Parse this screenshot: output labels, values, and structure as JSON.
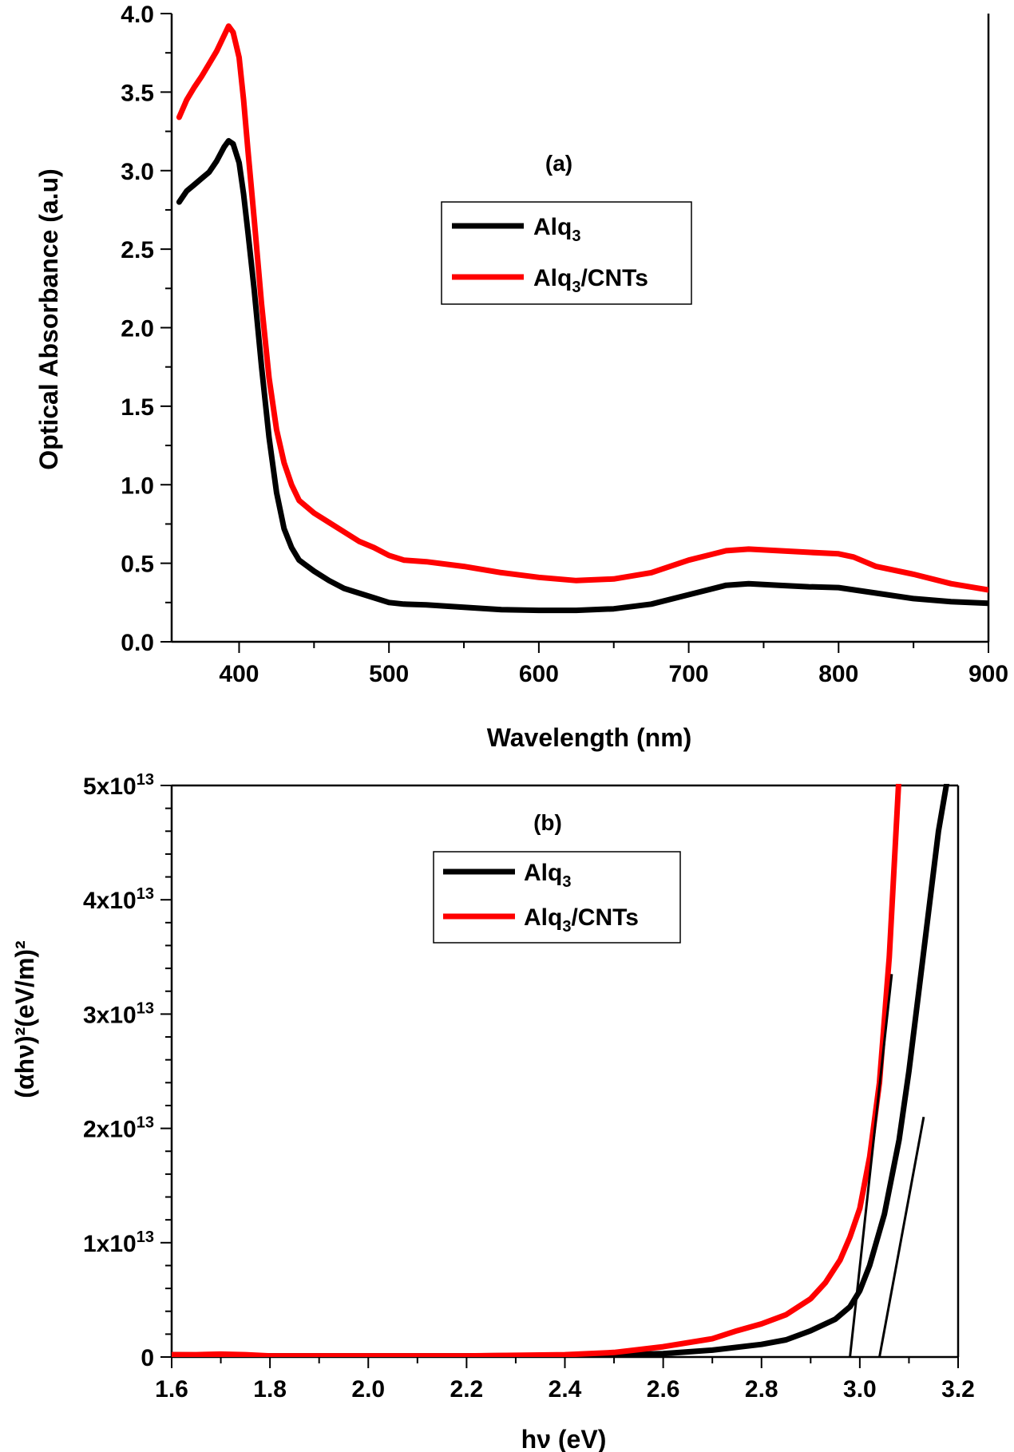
{
  "chart_data": [
    {
      "type": "line",
      "panel_label": "(a)",
      "xlabel": "Wavelength (nm)",
      "ylabel": "Optical Absorbance (a.u)",
      "xlim": [
        355,
        900
      ],
      "ylim": [
        0,
        4.0
      ],
      "xticks": [
        400,
        500,
        600,
        700,
        800,
        900
      ],
      "xtick_labels": [
        "400",
        "500",
        "600",
        "700",
        "800",
        "900"
      ],
      "yticks": [
        0,
        0.5,
        1.0,
        1.5,
        2.0,
        2.5,
        3.0,
        3.5,
        4.0
      ],
      "ytick_labels": [
        "0.0",
        "0.5",
        "1.0",
        "1.5",
        "2.0",
        "2.5",
        "3.0",
        "3.5",
        "4.0"
      ],
      "legend": {
        "position": "center",
        "entries": [
          {
            "base": "Alq",
            "sub": "3",
            "rest": ""
          },
          {
            "base": "Alq",
            "sub": "3",
            "rest": "/CNTs"
          }
        ]
      },
      "series": [
        {
          "name": "Alq3",
          "color": "#000000",
          "x": [
            360,
            365,
            370,
            375,
            380,
            385,
            390,
            393,
            396,
            400,
            403,
            406,
            410,
            415,
            420,
            425,
            430,
            435,
            440,
            450,
            460,
            470,
            480,
            490,
            500,
            510,
            525,
            550,
            575,
            600,
            625,
            650,
            675,
            700,
            725,
            740,
            760,
            780,
            800,
            825,
            850,
            875,
            900
          ],
          "y": [
            2.8,
            2.87,
            2.91,
            2.95,
            2.99,
            3.06,
            3.15,
            3.19,
            3.17,
            3.05,
            2.85,
            2.6,
            2.25,
            1.75,
            1.3,
            0.95,
            0.72,
            0.6,
            0.52,
            0.45,
            0.39,
            0.34,
            0.31,
            0.28,
            0.25,
            0.24,
            0.235,
            0.22,
            0.205,
            0.2,
            0.2,
            0.21,
            0.24,
            0.3,
            0.36,
            0.37,
            0.36,
            0.35,
            0.345,
            0.31,
            0.275,
            0.255,
            0.245
          ]
        },
        {
          "name": "Alq3/CNTs",
          "color": "#ff0000",
          "x": [
            360,
            365,
            370,
            375,
            380,
            385,
            390,
            393,
            396,
            400,
            403,
            406,
            410,
            415,
            420,
            425,
            430,
            435,
            440,
            450,
            460,
            470,
            480,
            490,
            500,
            510,
            525,
            550,
            575,
            600,
            625,
            650,
            675,
            700,
            725,
            740,
            760,
            780,
            800,
            810,
            825,
            850,
            875,
            900
          ],
          "y": [
            3.34,
            3.45,
            3.53,
            3.6,
            3.68,
            3.76,
            3.86,
            3.92,
            3.88,
            3.72,
            3.45,
            3.12,
            2.7,
            2.15,
            1.68,
            1.35,
            1.14,
            1.0,
            0.9,
            0.82,
            0.76,
            0.7,
            0.64,
            0.6,
            0.55,
            0.52,
            0.51,
            0.48,
            0.44,
            0.41,
            0.39,
            0.4,
            0.44,
            0.52,
            0.58,
            0.59,
            0.58,
            0.57,
            0.56,
            0.54,
            0.48,
            0.43,
            0.37,
            0.33
          ]
        }
      ]
    },
    {
      "type": "line",
      "panel_label": "(b)",
      "xlabel": "hν (eV)",
      "ylabel": "(αhν)²(eV/m)²",
      "xlim": [
        1.6,
        3.2
      ],
      "ylim": [
        0,
        50000000000000.0
      ],
      "xticks": [
        1.6,
        1.8,
        2.0,
        2.2,
        2.4,
        2.6,
        2.8,
        3.0,
        3.2
      ],
      "xtick_labels": [
        "1.6",
        "1.8",
        "2.0",
        "2.2",
        "2.4",
        "2.6",
        "2.8",
        "3.0",
        "3.2"
      ],
      "yticks": [
        0,
        10000000000000.0,
        20000000000000.0,
        30000000000000.0,
        40000000000000.0,
        50000000000000.0
      ],
      "ytick_labels": [
        "0",
        "1x10",
        "2x10",
        "3x10",
        "4x10",
        "5x10"
      ],
      "ytick_exponent": "13",
      "legend": {
        "position": "top-right",
        "entries": [
          {
            "base": "Alq",
            "sub": "3",
            "rest": ""
          },
          {
            "base": "Alq",
            "sub": "3",
            "rest": "/CNTs"
          }
        ]
      },
      "series": [
        {
          "name": "Alq3",
          "color": "#000000",
          "x": [
            1.6,
            1.8,
            2.0,
            2.2,
            2.4,
            2.5,
            2.6,
            2.7,
            2.8,
            2.85,
            2.9,
            2.95,
            2.98,
            3.0,
            3.02,
            3.05,
            3.08,
            3.1,
            3.12,
            3.14,
            3.16,
            3.18
          ],
          "y": [
            200000000000.0,
            100000000000.0,
            100000000000.0,
            100000000000.0,
            150000000000.0,
            200000000000.0,
            300000000000.0,
            600000000000.0,
            1100000000000.0,
            1500000000000.0,
            2300000000000.0,
            3300000000000.0,
            4400000000000.0,
            5800000000000.0,
            8000000000000.0,
            12500000000000.0,
            19000000000000.0,
            25000000000000.0,
            32000000000000.0,
            39000000000000.0,
            46000000000000.0,
            51000000000000.0
          ]
        },
        {
          "name": "Alq3/CNTs",
          "color": "#ff0000",
          "x": [
            1.6,
            1.65,
            1.7,
            1.75,
            1.8,
            2.0,
            2.2,
            2.4,
            2.5,
            2.6,
            2.7,
            2.75,
            2.8,
            2.85,
            2.9,
            2.93,
            2.96,
            2.98,
            3.0,
            3.02,
            3.04,
            3.06,
            3.08
          ],
          "y": [
            200000000000.0,
            200000000000.0,
            250000000000.0,
            200000000000.0,
            100000000000.0,
            100000000000.0,
            100000000000.0,
            200000000000.0,
            400000000000.0,
            900000000000.0,
            1600000000000.0,
            2300000000000.0,
            2900000000000.0,
            3700000000000.0,
            5100000000000.0,
            6500000000000.0,
            8500000000000.0,
            10500000000000.0,
            13000000000000.0,
            17500000000000.0,
            24000000000000.0,
            35000000000000.0,
            51000000000000.0
          ]
        }
      ],
      "fit_lines": [
        {
          "x": [
            2.98,
            3.065
          ],
          "y": [
            0,
            33500000000000.0
          ],
          "color": "#000000"
        },
        {
          "x": [
            3.04,
            3.13
          ],
          "y": [
            0,
            21000000000000.0
          ],
          "color": "#000000"
        }
      ]
    }
  ]
}
